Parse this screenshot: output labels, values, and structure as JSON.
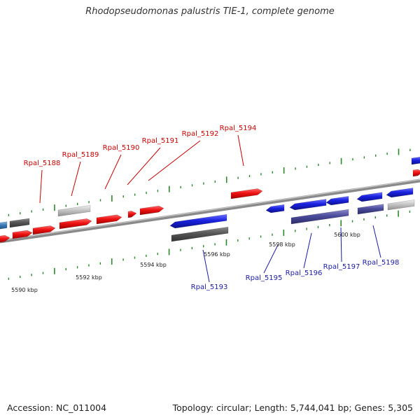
{
  "title": "Rhodopseudomonas palustris TIE-1, complete genome",
  "footer": {
    "accession": "Accession: NC_011004",
    "summary": "Topology: circular; Length: 5,744,041 bp; Genes: 5,305"
  },
  "colors": {
    "backbone": "#8a8a8a",
    "tick": "#2a8a2a",
    "forward_label": "#cc0000",
    "reverse_label": "#1a1aa6",
    "forward_gene": "#ee1111",
    "reverse_gene": "#1a22e0",
    "other_gene": "#444444",
    "rna_gene": "#bbbbbb",
    "dark_reverse": "#444499",
    "edge_blue": "#3a7ab5"
  },
  "scale": {
    "unit": "kbp",
    "labels": [
      "5590 kbp",
      "5592 kbp",
      "5594 kbp",
      "5596 kbp",
      "5598 kbp",
      "5600 kbp"
    ]
  },
  "forward_genes": [
    "Rpal_5188",
    "Rpal_5189",
    "Rpal_5190",
    "Rpal_5191",
    "Rpal_5192",
    "Rpal_5194"
  ],
  "reverse_genes": [
    "Rpal_5193",
    "Rpal_5195",
    "Rpal_5196",
    "Rpal_5197",
    "Rpal_5198"
  ]
}
